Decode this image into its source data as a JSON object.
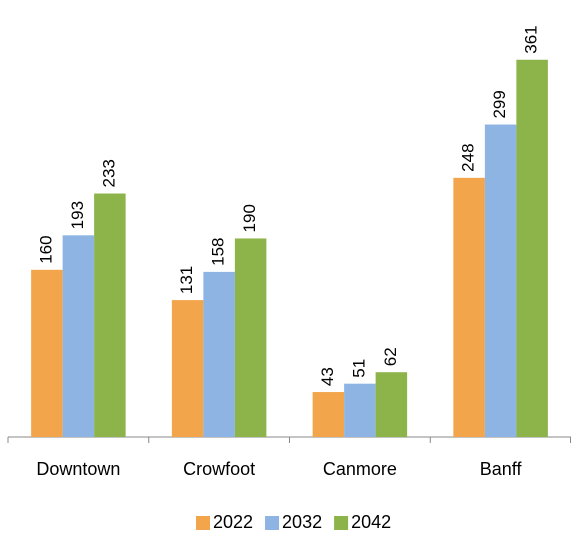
{
  "chart_data": {
    "type": "bar",
    "categories": [
      "Downtown",
      "Crowfoot",
      "Canmore",
      "Banff"
    ],
    "series": [
      {
        "name": "2022",
        "color": "#f2a54a",
        "values": [
          160,
          131,
          43,
          248
        ]
      },
      {
        "name": "2032",
        "color": "#8db4e3",
        "values": [
          193,
          158,
          51,
          299
        ]
      },
      {
        "name": "2042",
        "color": "#8cb44a",
        "values": [
          233,
          190,
          62,
          361
        ]
      }
    ],
    "ylim": [
      0,
      400
    ],
    "legend": "bottom"
  }
}
